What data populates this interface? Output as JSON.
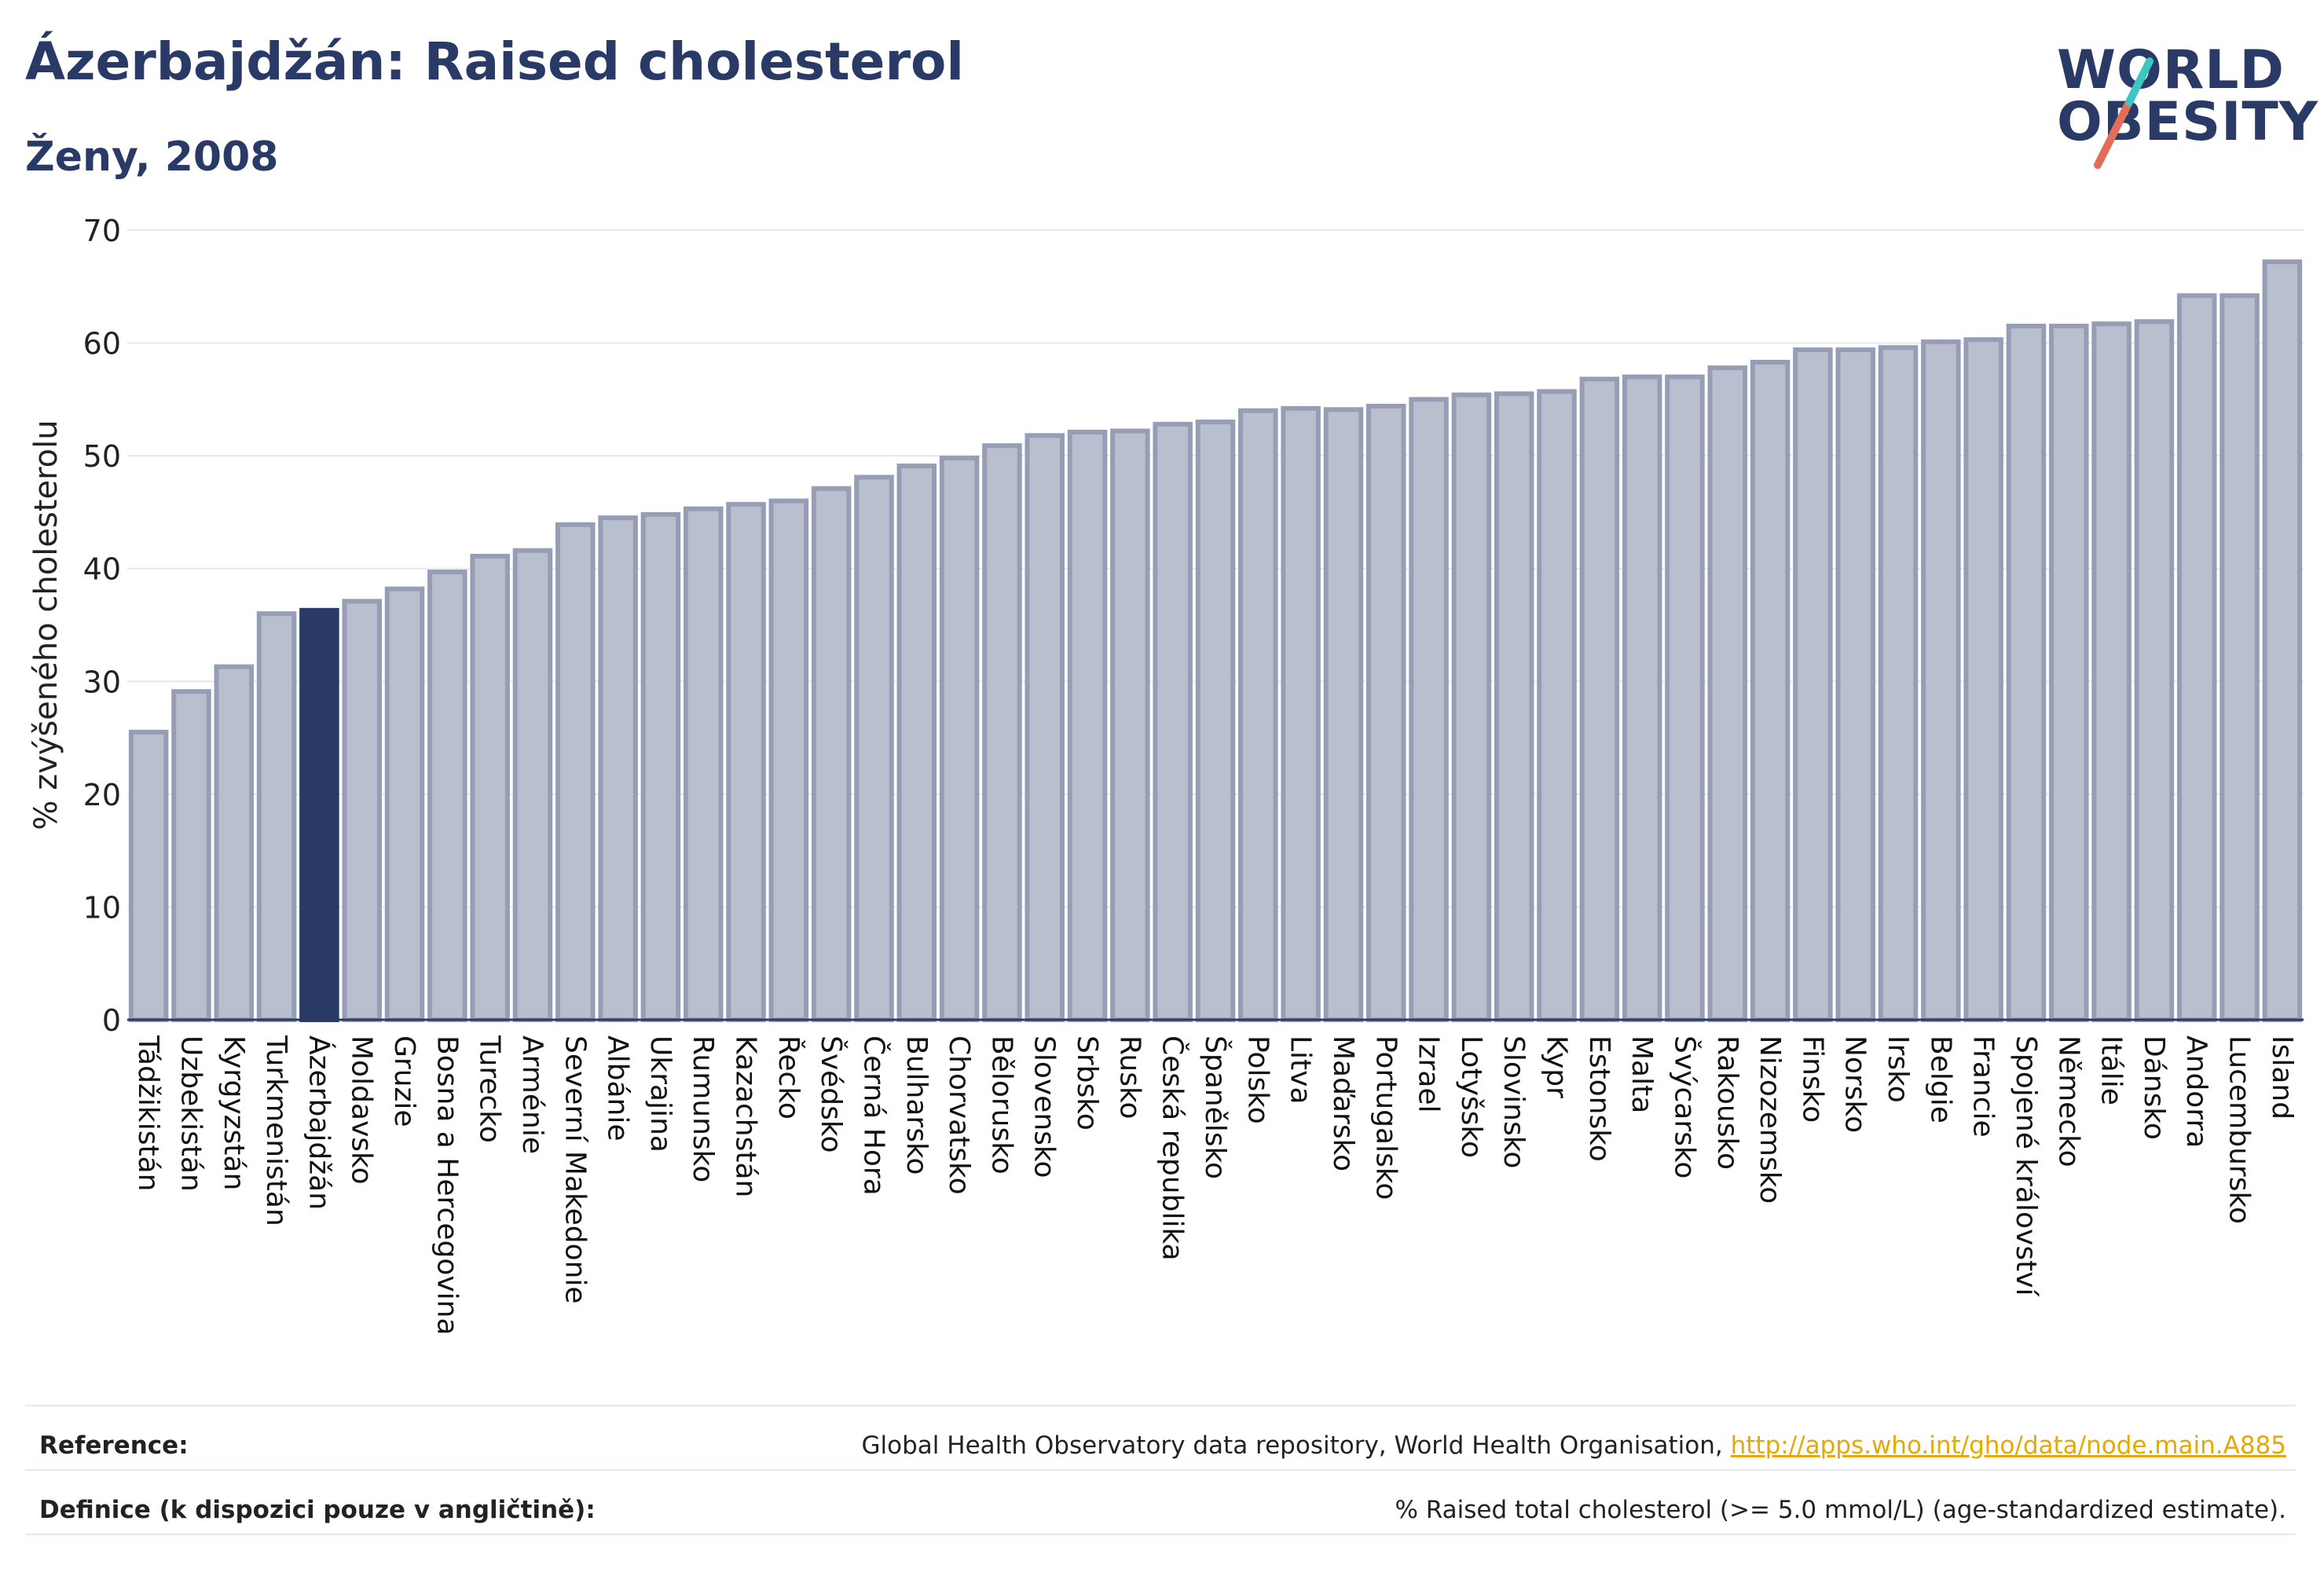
{
  "header": {
    "title": "Ázerbajdžán: Raised cholesterol",
    "subtitle": "Ženy, 2008",
    "logo_line1": "WORLD",
    "logo_line2": "OBESITY"
  },
  "colors": {
    "highlight": "#2a3a66",
    "bar_fill": "#b9bfcf",
    "bar_stroke": "#969eb6",
    "text": "#2a3a66",
    "logo_slash": "#e36d5a",
    "logo_slash2": "#3ec6c0"
  },
  "chart_data": {
    "type": "bar",
    "title": "Ázerbajdžán: Raised cholesterol",
    "subtitle": "Ženy, 2008",
    "xlabel": "",
    "ylabel": "% zvýšeného cholesterolu",
    "ylim": [
      0,
      70
    ],
    "yticks": [
      0,
      10,
      20,
      30,
      40,
      50,
      60,
      70
    ],
    "grid": true,
    "highlight": "Ázerbajdžán",
    "categories": [
      "Tádžikistán",
      "Uzbekistán",
      "Kyrgyzstán",
      "Turkmenistán",
      "Ázerbajdžán",
      "Moldavsko",
      "Gruzie",
      "Bosna a Hercegovina",
      "Turecko",
      "Arménie",
      "Severní Makedonie",
      "Albánie",
      "Ukrajina",
      "Rumunsko",
      "Kazachstán",
      "Řecko",
      "Švédsko",
      "Černá Hora",
      "Bulharsko",
      "Chorvatsko",
      "Bělorusko",
      "Slovensko",
      "Srbsko",
      "Rusko",
      "Česká republika",
      "Španělsko",
      "Polsko",
      "Litva",
      "Maďarsko",
      "Portugalsko",
      "Izrael",
      "Lotyšsko",
      "Slovinsko",
      "Kypr",
      "Estonsko",
      "Malta",
      "Švýcarsko",
      "Rakousko",
      "Nizozemsko",
      "Finsko",
      "Norsko",
      "Irsko",
      "Belgie",
      "Francie",
      "Spojené království",
      "Německo",
      "Itálie",
      "Dánsko",
      "Andorra",
      "Lucembursko",
      "Island"
    ],
    "values": [
      25.5,
      29.1,
      31.3,
      36.0,
      36.3,
      37.1,
      38.2,
      39.7,
      41.1,
      41.6,
      43.9,
      44.5,
      44.8,
      45.3,
      45.7,
      46.0,
      47.1,
      48.1,
      49.1,
      49.8,
      50.9,
      51.8,
      52.1,
      52.2,
      52.8,
      53.0,
      54.0,
      54.2,
      54.1,
      54.4,
      55.0,
      55.4,
      55.5,
      55.7,
      56.8,
      57.0,
      57.0,
      57.8,
      58.3,
      59.4,
      59.4,
      59.6,
      60.1,
      60.3,
      61.5,
      61.5,
      61.7,
      61.9,
      64.2,
      64.2,
      67.2
    ]
  },
  "footer": {
    "reference_label": "Reference:",
    "reference_text": "Global Health Observatory data repository, World Health Organisation, ",
    "reference_link": "http://apps.who.int/gho/data/node.main.A885",
    "definition_label": "Definice (k dispozici pouze v angličtině):",
    "definition_text": "% Raised total cholesterol (>= 5.0 mmol/L) (age-standardized estimate)."
  }
}
